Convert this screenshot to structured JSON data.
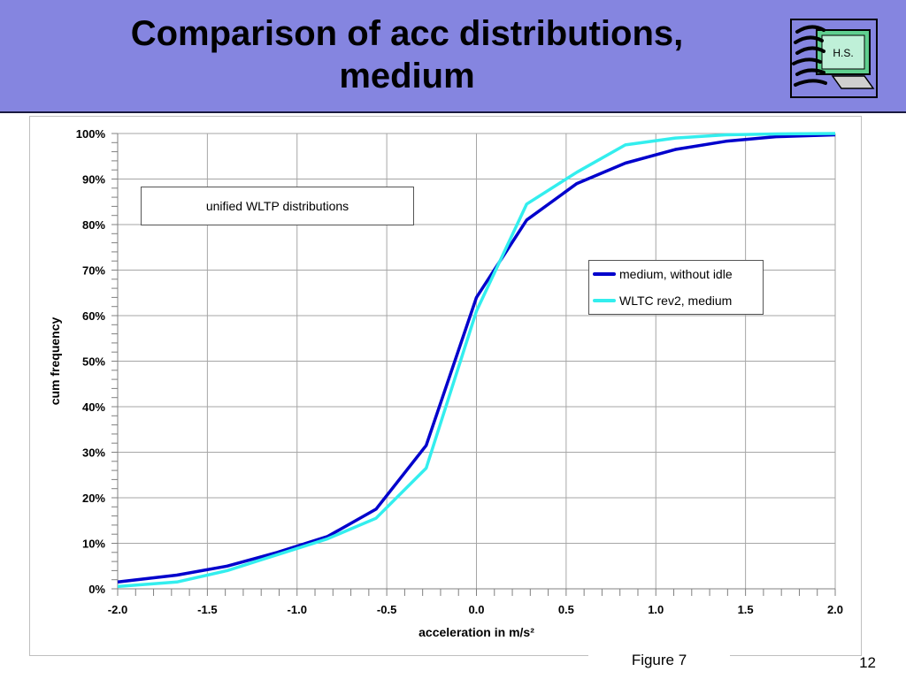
{
  "slide": {
    "title_line1": "Comparison of acc distributions,",
    "title_line2": "medium",
    "figure_caption": "Figure 7",
    "page_number": "12",
    "logo_text": "H.S."
  },
  "colors": {
    "header_bg": "#8585e0",
    "series_medium_without_idle": "#0000cc",
    "series_wltc_rev2_medium": "#33eeee",
    "grid": "#a6a6a6"
  },
  "chart_data": {
    "type": "line",
    "title": "",
    "annotation": "unified WLTP distributions",
    "xlabel": "acceleration in m/s²",
    "ylabel": "cum frequency",
    "xlim": [
      -2.0,
      2.0
    ],
    "ylim": [
      0,
      100
    ],
    "x_ticks": [
      "-2.0",
      "-1.5",
      "-1.0",
      "-0.5",
      "0.0",
      "0.5",
      "1.0",
      "1.5",
      "2.0"
    ],
    "y_ticks": [
      "0%",
      "10%",
      "20%",
      "30%",
      "40%",
      "50%",
      "60%",
      "70%",
      "80%",
      "90%",
      "100%"
    ],
    "grid": true,
    "legend_position": "right",
    "series": [
      {
        "name": "medium, without idle",
        "color": "#0000cc",
        "x": [
          -2.0,
          -1.67,
          -1.39,
          -1.11,
          -0.83,
          -0.56,
          -0.28,
          0.0,
          0.28,
          0.56,
          0.83,
          1.11,
          1.39,
          1.67,
          2.0
        ],
        "y": [
          1.5,
          3.0,
          5.0,
          8.0,
          11.5,
          17.5,
          31.5,
          64.0,
          81.0,
          89.0,
          93.5,
          96.5,
          98.3,
          99.3,
          99.7
        ]
      },
      {
        "name": "WLTC rev2, medium",
        "color": "#33eeee",
        "x": [
          -2.0,
          -1.67,
          -1.39,
          -1.11,
          -0.83,
          -0.56,
          -0.28,
          0.0,
          0.28,
          0.56,
          0.83,
          1.11,
          1.39,
          1.67,
          2.0
        ],
        "y": [
          0.5,
          1.5,
          4.0,
          7.5,
          11.0,
          15.5,
          26.5,
          61.0,
          84.5,
          91.5,
          97.5,
          99.0,
          99.7,
          99.9,
          100.0
        ]
      }
    ]
  }
}
